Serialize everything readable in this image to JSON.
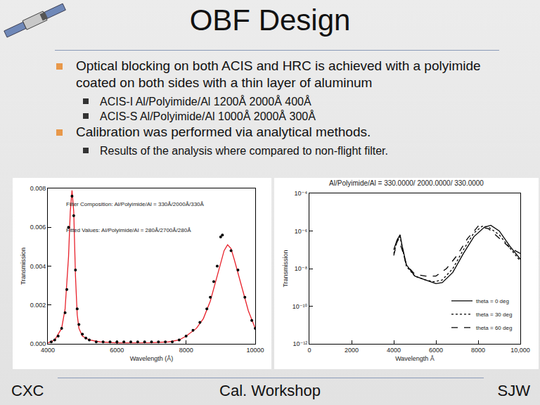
{
  "slide": {
    "title": "OBF Design",
    "bullets": [
      {
        "text": "Optical blocking on both ACIS and HRC is achieved with a polyimide coated on both sides with a thin layer of aluminum",
        "sub": [
          "ACIS-I Al/Polyimide/Al  1200Å 2000Å 400Å",
          "ACIS-S Al/Polyimide/Al  1000Å 2000Å 300Å"
        ]
      },
      {
        "text": "Calibration was performed via analytical methods.",
        "sub": [
          "Results of the analysis where compared to non-flight filter."
        ]
      }
    ],
    "footer": {
      "left": "CXC",
      "center": "Cal. Workshop",
      "right": "SJW"
    }
  },
  "chart_data": [
    {
      "type": "line",
      "annotations": [
        "Filter Composition: Al/Polyimide/Al = 330Å/2000Å/330Å",
        "Fitted Values: Al/Polyimide/Al = 280Å/2700Å/280Å"
      ],
      "x_label": "Wavelength (Å)",
      "y_label": "Transmission",
      "xlim": [
        4000,
        10000
      ],
      "xticks": [
        4000,
        6000,
        8000,
        10000
      ],
      "ylim": [
        0,
        0.008
      ],
      "yticks": [
        {
          "value": 0,
          "label": "0.000"
        },
        {
          "value": 0.002,
          "label": "0.002"
        },
        {
          "value": 0.004,
          "label": "0.004"
        },
        {
          "value": 0.006,
          "label": "0.006"
        },
        {
          "value": 0.008,
          "label": "0.008"
        }
      ],
      "grid": false,
      "series": [
        {
          "type": "line",
          "color": "#e8202a",
          "line_style": "solid",
          "x": [
            4000,
            4200,
            4400,
            4500,
            4600,
            4650,
            4700,
            4750,
            4800,
            4850,
            4900,
            5000,
            5200,
            5500,
            6000,
            6500,
            7000,
            7500,
            7800,
            8000,
            8300,
            8500,
            8700,
            8900,
            9100,
            9200,
            9300,
            9400,
            9600,
            9800,
            10000
          ],
          "values": [
            5e-05,
            0.0002,
            0.0008,
            0.0018,
            0.0045,
            0.0068,
            0.0079,
            0.0068,
            0.0035,
            0.0015,
            0.0008,
            0.0004,
            0.0002,
            0.0001,
            5e-05,
            5e-05,
            6e-05,
            0.0001,
            0.0002,
            0.0004,
            0.0008,
            0.0013,
            0.0022,
            0.0035,
            0.0048,
            0.0051,
            0.0049,
            0.0043,
            0.003,
            0.0017,
            0.0008
          ]
        },
        {
          "type": "scatter",
          "color": "#000000",
          "marker": "dot",
          "x": [
            4100,
            4200,
            4300,
            4400,
            4500,
            4550,
            4600,
            4700,
            4750,
            4800,
            4850,
            4900,
            5000,
            5100,
            5200,
            5400,
            5600,
            5800,
            6000,
            6200,
            6400,
            6600,
            6800,
            7000,
            7200,
            7400,
            7600,
            7800,
            8000,
            8200,
            8400,
            8600,
            8700,
            8800,
            8900,
            9000,
            9050,
            9300,
            9500,
            9700,
            9900,
            10000
          ],
          "values": [
            0.0001,
            0.0002,
            0.0004,
            0.0008,
            0.0016,
            0.0028,
            0.006,
            0.0076,
            0.0066,
            0.0038,
            0.0018,
            0.001,
            0.0005,
            0.0003,
            0.0002,
            0.0001,
            0.0001,
            0.0001,
            0.0001,
            0.0001,
            0.0001,
            0.0001,
            0.0001,
            0.0001,
            0.0001,
            0.0001,
            0.0001,
            0.0002,
            0.0004,
            0.0007,
            0.0011,
            0.0018,
            0.0024,
            0.0032,
            0.004,
            0.0055,
            0.0056,
            0.0048,
            0.0038,
            0.0024,
            0.0012,
            0.0008
          ]
        }
      ]
    },
    {
      "type": "line",
      "title": "Al/Polyimide/Al = 330.0000/ 2000.0000/ 330.0000",
      "x_label": "Wavelength Å",
      "y_label": "Transmission",
      "log": "y",
      "legend": "lower right",
      "grid": false,
      "xlim": [
        0,
        10000
      ],
      "xticks": [
        0,
        2000,
        4000,
        6000,
        8000,
        {
          "value": 10000,
          "label": "10,000"
        }
      ],
      "ylim": [
        1e-12,
        0.0001
      ],
      "yticks": [
        {
          "value": 1e-12,
          "label": "10⁻¹²"
        },
        {
          "value": 1e-10,
          "label": "10⁻¹⁰"
        },
        {
          "value": 1e-08,
          "label": "10⁻⁸"
        },
        {
          "value": 1e-06,
          "label": "10⁻⁶"
        },
        {
          "value": 0.0001,
          "label": "10⁻⁴"
        }
      ],
      "series": [
        {
          "name": "theta = 0 deg",
          "type": "line",
          "color": "#000000",
          "line_style": "solid",
          "x": [
            4000,
            4150,
            4300,
            4400,
            4600,
            5000,
            5500,
            6000,
            6300,
            6800,
            7300,
            7800,
            8300,
            8600,
            9000,
            9500,
            10000
          ],
          "values": [
            1e-07,
            3.2e-07,
            6.3e-07,
            1.6e-07,
            1.6e-08,
            4e-09,
            2.5e-09,
            1.6e-09,
            1.8e-09,
            6.3e-09,
            6.3e-08,
            5e-07,
            1.6e-06,
            2e-06,
            1e-06,
            1.6e-07,
            3.2e-08
          ]
        },
        {
          "name": "theta = 30 deg",
          "type": "line",
          "color": "#000000",
          "line_style": "dot",
          "x": [
            4000,
            4150,
            4300,
            4400,
            4600,
            5000,
            5500,
            5900,
            6300,
            6800,
            7300,
            7800,
            8200,
            8500,
            9000,
            9500,
            10000
          ],
          "values": [
            6.3e-08,
            2.5e-07,
            5e-07,
            1.3e-07,
            1.3e-08,
            4e-09,
            2.5e-09,
            2e-09,
            2.5e-09,
            1e-08,
            1e-07,
            7.9e-07,
            1.8e-06,
            1.6e-06,
            6.3e-07,
            1.3e-07,
            2.5e-08
          ]
        },
        {
          "name": "theta = 60 deg",
          "type": "line",
          "color": "#000000",
          "line_style": "dash",
          "x": [
            4000,
            4200,
            4400,
            4600,
            5000,
            5500,
            6000,
            6500,
            7000,
            7500,
            7900,
            8000,
            8500,
            9000,
            9500,
            10000
          ],
          "values": [
            5e-08,
            4e-07,
            1e-07,
            1.6e-08,
            5e-09,
            4e-09,
            4e-09,
            1e-08,
            5e-08,
            4e-07,
            1.3e-06,
            1.8e-06,
            1.3e-06,
            4e-07,
            1.3e-07,
            6.3e-08
          ]
        }
      ]
    }
  ]
}
